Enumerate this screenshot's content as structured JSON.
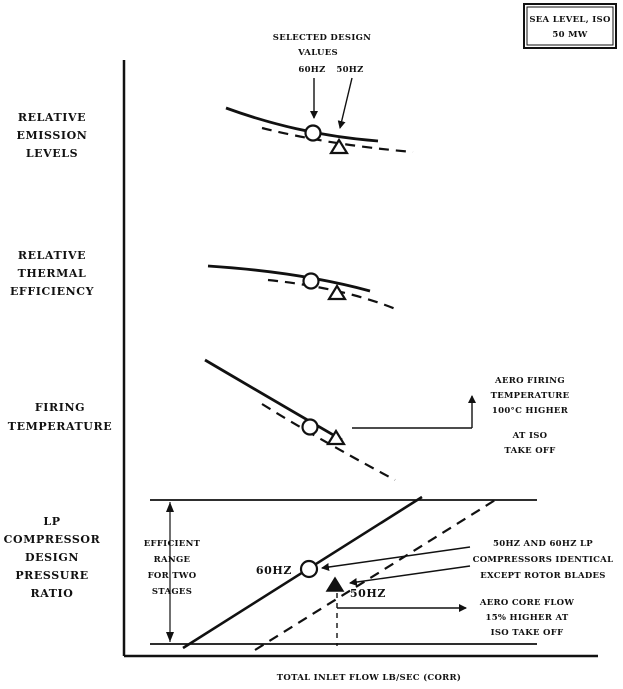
{
  "header_box": {
    "line1": "SEA LEVEL, ISO",
    "line2": "50 MW"
  },
  "selected_design": {
    "line1": "SELECTED DESIGN",
    "line2": "VALUES",
    "hz60": "60HZ",
    "hz50": "50HZ"
  },
  "rows": [
    {
      "lines": [
        "RELATIVE",
        "EMISSION",
        "LEVELS"
      ]
    },
    {
      "lines": [
        "RELATIVE",
        "THERMAL",
        "EFFICIENCY"
      ]
    },
    {
      "lines": [
        "FIRING",
        "TEMPERATURE"
      ]
    },
    {
      "lines": [
        "LP",
        "COMPRESSOR",
        "DESIGN",
        "PRESSURE",
        "RATIO"
      ]
    }
  ],
  "firing_note": [
    "AERO FIRING",
    "TEMPERATURE",
    "100°C HIGHER",
    "AT ISO",
    "TAKE OFF"
  ],
  "efficient_range": [
    "EFFICIENT",
    "RANGE",
    "FOR TWO",
    "STAGES"
  ],
  "marker_labels": {
    "hz60": "60HZ",
    "hz50": "50HZ"
  },
  "compressor_note": [
    "50HZ AND 60HZ LP",
    "COMPRESSORS IDENTICAL",
    "EXCEPT ROTOR BLADES"
  ],
  "core_flow_note": [
    "AERO CORE FLOW",
    "15% HIGHER AT",
    "ISO TAKE OFF"
  ],
  "x_axis_label": "TOTAL INLET FLOW LB/SEC (CORR)",
  "colors": {
    "ink": "#111111",
    "background": "#ffffff"
  }
}
